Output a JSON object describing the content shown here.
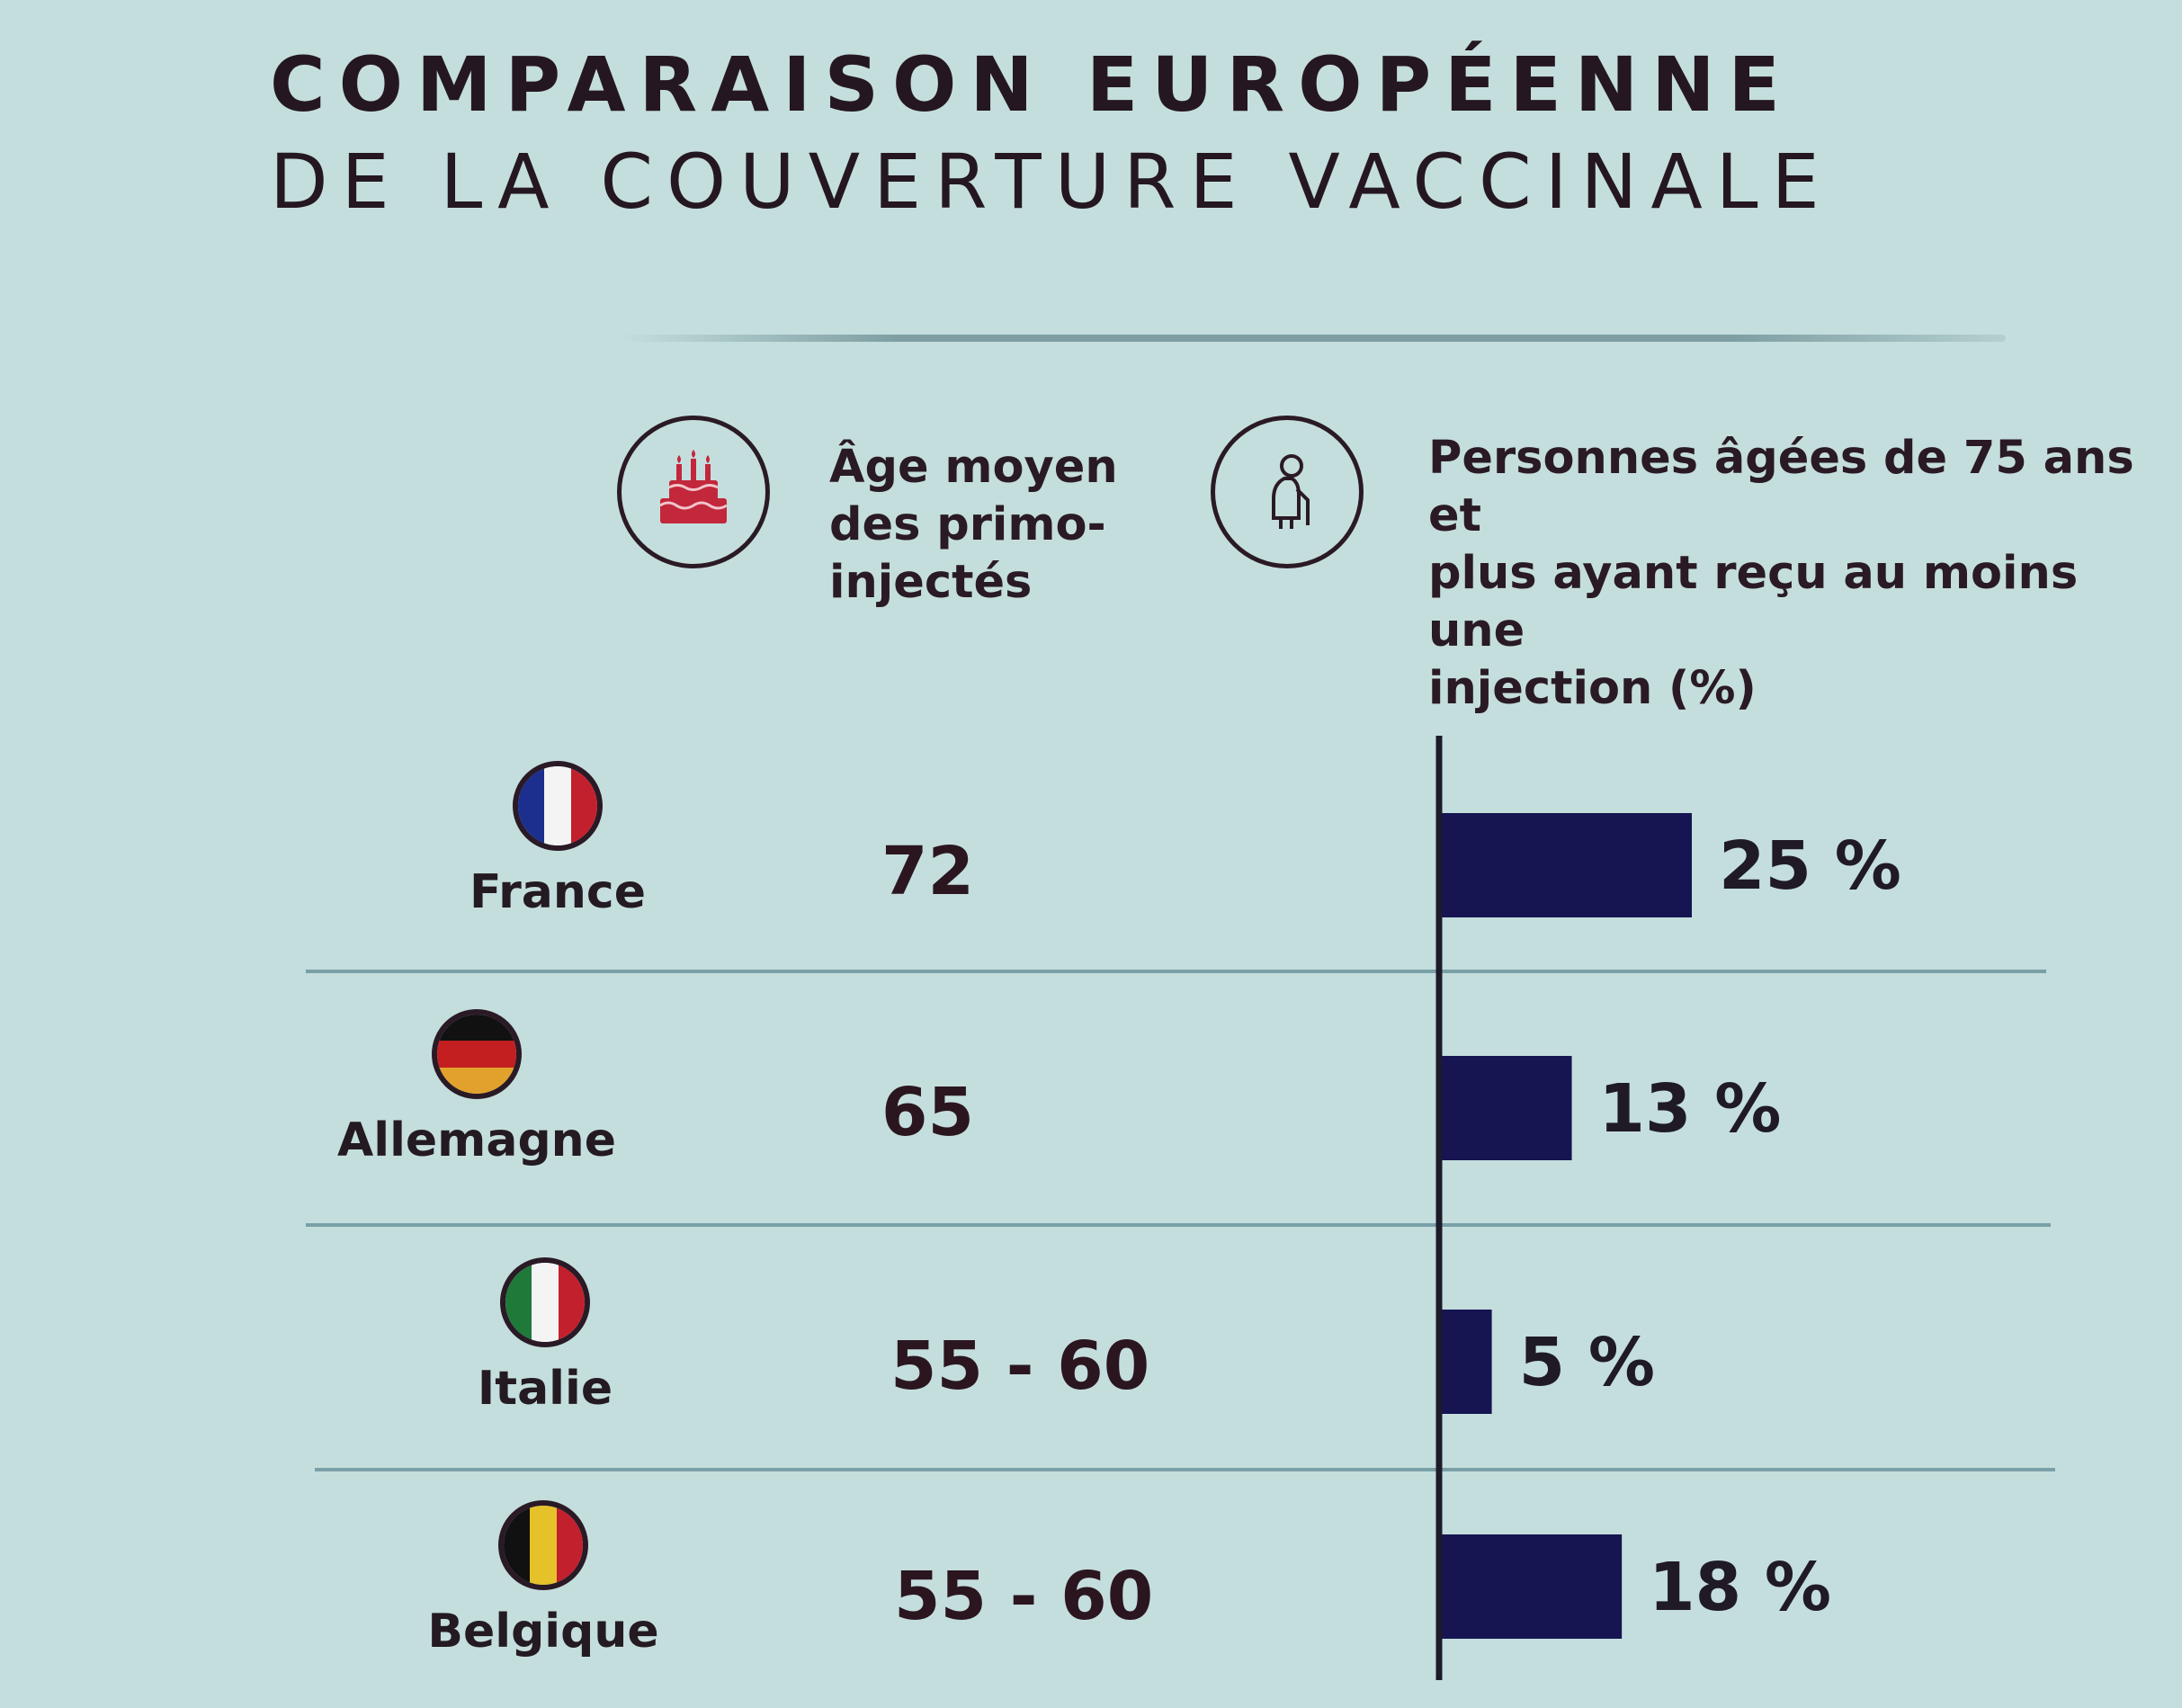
{
  "title": {
    "line1": "COMPARAISON EUROPÉENNE",
    "line2": "DE LA COUVERTURE VACCINALE"
  },
  "headers": {
    "age": {
      "icon": "birthday-cake-icon",
      "label_lines": [
        "Âge moyen",
        "des primo-",
        "injectés"
      ]
    },
    "coverage": {
      "icon": "elderly-person-icon",
      "label_lines": [
        "Personnes âgées de 75 ans et",
        "plus ayant reçu au moins une",
        "injection (%)"
      ]
    }
  },
  "colors": {
    "bar": "#161552",
    "france": [
      "#1c2f8f",
      "#f4f4f4",
      "#c3202e"
    ],
    "germany": [
      "#111111",
      "#c31f20",
      "#e2a12c"
    ],
    "italy": [
      "#1f7a3a",
      "#f4f4f4",
      "#c3202e"
    ],
    "belgium": [
      "#111111",
      "#e5c12a",
      "#c3202e"
    ]
  },
  "countries": [
    {
      "name": "France",
      "flag": "france-flag-icon",
      "age": "72",
      "label": "25 %"
    },
    {
      "name": "Allemagne",
      "flag": "germany-flag-icon",
      "age": "65",
      "label": "13 %"
    },
    {
      "name": "Italie",
      "flag": "italy-flag-icon",
      "age": "55 - 60",
      "label": "5 %"
    },
    {
      "name": "Belgique",
      "flag": "belgium-flag-icon",
      "age": "55 - 60",
      "label": "18 %"
    }
  ],
  "chart_data": {
    "type": "bar",
    "orientation": "horizontal",
    "title": "COMPARAISON EUROPÉENNE DE LA COUVERTURE VACCINALE",
    "categories": [
      "France",
      "Allemagne",
      "Italie",
      "Belgique"
    ],
    "values": [
      25,
      13,
      5,
      18
    ],
    "value_labels": [
      "25 %",
      "13 %",
      "5 %",
      "18 %"
    ],
    "ylabel": "Personnes âgées de 75 ans et plus ayant reçu au moins une injection (%)",
    "xlim": [
      0,
      25
    ],
    "grid": false,
    "legend": "none",
    "table_column": {
      "label": "Âge moyen des primo-injectés",
      "values": [
        "72",
        "65",
        "55 - 60",
        "55 - 60"
      ]
    }
  }
}
